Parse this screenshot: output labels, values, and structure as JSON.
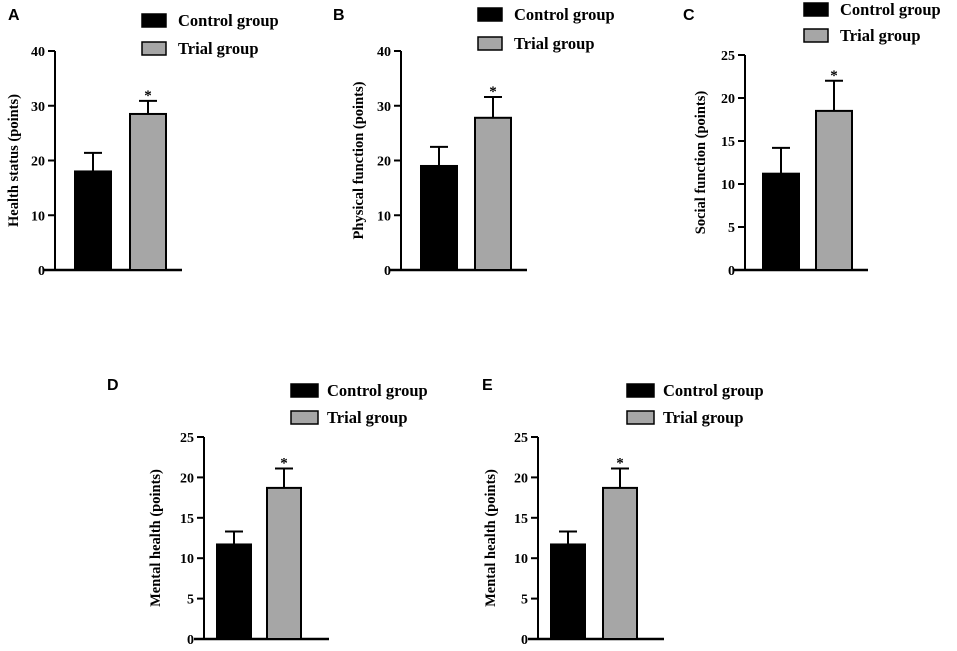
{
  "colors": {
    "control": "#000000",
    "trial": "#a6a6a6",
    "axis": "#000000"
  },
  "chart_data": [
    {
      "panel": "A",
      "type": "bar",
      "series": [
        {
          "name": "Control group",
          "values": [
            18
          ],
          "error": [
            3.4
          ]
        },
        {
          "name": "Trial group",
          "values": [
            28.5
          ],
          "error": [
            2.4
          ]
        }
      ],
      "ylabel": "Health status (points)",
      "ylim": [
        0,
        40
      ],
      "yticks": [
        "0",
        "10",
        "20",
        "30",
        "40"
      ],
      "annotation": "*",
      "legend": "top"
    },
    {
      "panel": "B",
      "type": "bar",
      "series": [
        {
          "name": "Control group",
          "values": [
            19
          ],
          "error": [
            3.5
          ]
        },
        {
          "name": "Trial group",
          "values": [
            27.8
          ],
          "error": [
            3.8
          ]
        }
      ],
      "ylabel": "Physical function (points)",
      "ylim": [
        0,
        40
      ],
      "yticks": [
        "0",
        "10",
        "20",
        "30",
        "40"
      ],
      "annotation": "*",
      "legend": "top"
    },
    {
      "panel": "C",
      "type": "bar",
      "series": [
        {
          "name": "Control group",
          "values": [
            11.2
          ],
          "error": [
            3.0
          ]
        },
        {
          "name": "Trial group",
          "values": [
            18.5
          ],
          "error": [
            3.5
          ]
        }
      ],
      "ylabel": "Social function (points)",
      "ylim": [
        0,
        25
      ],
      "yticks": [
        "0",
        "5",
        "10",
        "15",
        "20",
        "25"
      ],
      "annotation": "*",
      "legend": "top"
    },
    {
      "panel": "D",
      "type": "bar",
      "series": [
        {
          "name": "Control group",
          "values": [
            11.7
          ],
          "error": [
            1.6
          ]
        },
        {
          "name": "Trial group",
          "values": [
            18.7
          ],
          "error": [
            2.4
          ]
        }
      ],
      "ylabel": "Mental health (points)",
      "ylim": [
        0,
        25
      ],
      "yticks": [
        "0",
        "5",
        "10",
        "15",
        "20",
        "25"
      ],
      "annotation": "*",
      "legend": "top"
    },
    {
      "panel": "E",
      "type": "bar",
      "series": [
        {
          "name": "Control group",
          "values": [
            11.7
          ],
          "error": [
            1.6
          ]
        },
        {
          "name": "Trial group",
          "values": [
            18.7
          ],
          "error": [
            2.4
          ]
        }
      ],
      "ylabel": "Mental health (points)",
      "ylim": [
        0,
        25
      ],
      "yticks": [
        "0",
        "5",
        "10",
        "15",
        "20",
        "25"
      ],
      "annotation": "*",
      "legend": "top"
    }
  ]
}
